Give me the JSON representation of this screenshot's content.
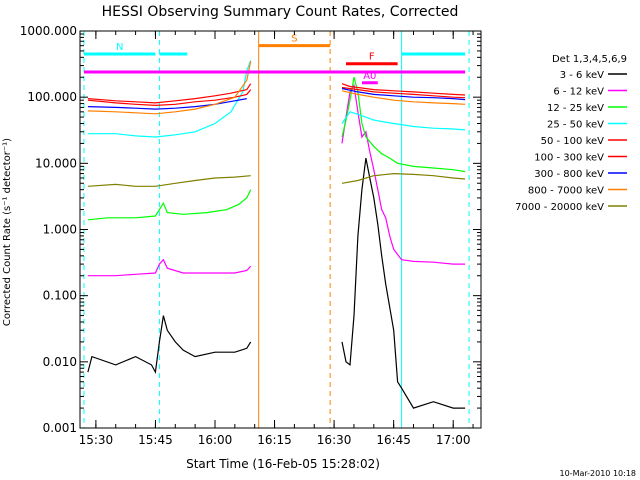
{
  "chart_data": {
    "type": "line",
    "title": "HESSI Observing Summary Count Rates, Corrected",
    "xlabel": "Start Time (16-Feb-05 15:28:02)",
    "ylabel": "Corrected Count Rate (s⁻¹ detector⁻¹)",
    "yscale": "log",
    "xlim": [
      "15:26",
      "17:07"
    ],
    "ylim": [
      0.001,
      1000
    ],
    "x_ticks": [
      "15:30",
      "15:45",
      "16:00",
      "16:15",
      "16:30",
      "16:45",
      "17:00"
    ],
    "y_ticks": [
      "0.001",
      "0.010",
      "0.100",
      "1.000",
      "10.000",
      "100.000",
      "1000.000"
    ],
    "footer": "10-Mar-2010 10:18",
    "legend_title": "Det 1,3,4,5,6,9",
    "legend_position": "right, outside plot",
    "series": [
      {
        "name": "3 - 6 keV",
        "color": "#000000",
        "points": [
          [
            "15:28",
            0.007
          ],
          [
            "15:29",
            0.012
          ],
          [
            "15:35",
            0.009
          ],
          [
            "15:40",
            0.012
          ],
          [
            "15:44",
            0.009
          ],
          [
            "15:45",
            0.007
          ],
          [
            "15:46",
            0.02
          ],
          [
            "15:47",
            0.05
          ],
          [
            "15:48",
            0.03
          ],
          [
            "15:50",
            0.02
          ],
          [
            "15:52",
            0.015
          ],
          [
            "15:55",
            0.012
          ],
          [
            "16:00",
            0.014
          ],
          [
            "16:05",
            0.014
          ],
          [
            "16:08",
            0.016
          ],
          [
            "16:09",
            0.02
          ]
        ]
      },
      {
        "name": "3 - 6 keV",
        "color": "#000000",
        "points": [
          [
            "16:32",
            0.02
          ],
          [
            "16:33",
            0.01
          ],
          [
            "16:34",
            0.009
          ],
          [
            "16:35",
            0.05
          ],
          [
            "16:36",
            0.8
          ],
          [
            "16:37",
            4
          ],
          [
            "16:38",
            12
          ],
          [
            "16:39",
            6
          ],
          [
            "16:40",
            3
          ],
          [
            "16:41",
            1.2
          ],
          [
            "16:42",
            0.4
          ],
          [
            "16:43",
            0.15
          ],
          [
            "16:45",
            0.03
          ],
          [
            "16:46",
            0.005
          ],
          [
            "16:47",
            0.004
          ],
          [
            "16:50",
            0.002
          ],
          [
            "16:55",
            0.0025
          ],
          [
            "17:00",
            0.002
          ],
          [
            "17:03",
            0.002
          ]
        ]
      },
      {
        "name": "6 - 12 keV",
        "color": "#ff00ff",
        "points": [
          [
            "15:28",
            0.2
          ],
          [
            "15:35",
            0.2
          ],
          [
            "15:40",
            0.21
          ],
          [
            "15:45",
            0.22
          ],
          [
            "15:46",
            0.3
          ],
          [
            "15:47",
            0.35
          ],
          [
            "15:48",
            0.26
          ],
          [
            "15:52",
            0.22
          ],
          [
            "15:58",
            0.22
          ],
          [
            "16:05",
            0.22
          ],
          [
            "16:08",
            0.24
          ],
          [
            "16:09",
            0.28
          ]
        ]
      },
      {
        "name": "6 - 12 keV",
        "color": "#ff00ff",
        "points": [
          [
            "16:32",
            20
          ],
          [
            "16:33",
            50
          ],
          [
            "16:34",
            120
          ],
          [
            "16:35",
            150
          ],
          [
            "16:36",
            60
          ],
          [
            "16:37",
            25
          ],
          [
            "16:38",
            30
          ],
          [
            "16:39",
            15
          ],
          [
            "16:40",
            8
          ],
          [
            "16:41",
            4
          ],
          [
            "16:42",
            2
          ],
          [
            "16:43",
            1.5
          ],
          [
            "16:44",
            0.8
          ],
          [
            "16:45",
            0.5
          ],
          [
            "16:47",
            0.35
          ],
          [
            "16:50",
            0.33
          ],
          [
            "16:55",
            0.32
          ],
          [
            "17:00",
            0.3
          ],
          [
            "17:03",
            0.3
          ]
        ]
      },
      {
        "name": "12 - 25 keV",
        "color": "#00ff00",
        "points": [
          [
            "15:28",
            1.4
          ],
          [
            "15:33",
            1.5
          ],
          [
            "15:40",
            1.5
          ],
          [
            "15:45",
            1.6
          ],
          [
            "15:47",
            2.5
          ],
          [
            "15:48",
            1.8
          ],
          [
            "15:52",
            1.7
          ],
          [
            "15:58",
            1.8
          ],
          [
            "16:03",
            2.0
          ],
          [
            "16:06",
            2.4
          ],
          [
            "16:08",
            3.0
          ],
          [
            "16:09",
            4.0
          ]
        ]
      },
      {
        "name": "12 - 25 keV",
        "color": "#00ff00",
        "points": [
          [
            "16:32",
            25
          ],
          [
            "16:33",
            45
          ],
          [
            "16:34",
            90
          ],
          [
            "16:35",
            200
          ],
          [
            "16:36",
            120
          ],
          [
            "16:37",
            40
          ],
          [
            "16:38",
            25
          ],
          [
            "16:40",
            18
          ],
          [
            "16:42",
            14
          ],
          [
            "16:44",
            12
          ],
          [
            "16:46",
            10
          ],
          [
            "16:50",
            9
          ],
          [
            "16:55",
            8.5
          ],
          [
            "17:00",
            8
          ],
          [
            "17:03",
            7.5
          ]
        ]
      },
      {
        "name": "25 - 50 keV",
        "color": "#00ffff",
        "points": [
          [
            "15:28",
            28
          ],
          [
            "15:35",
            28
          ],
          [
            "15:40",
            26
          ],
          [
            "15:45",
            25
          ],
          [
            "15:50",
            27
          ],
          [
            "15:55",
            30
          ],
          [
            "16:00",
            40
          ],
          [
            "16:04",
            60
          ],
          [
            "16:07",
            120
          ],
          [
            "16:08",
            250
          ],
          [
            "16:09",
            360
          ]
        ]
      },
      {
        "name": "25 - 50 keV",
        "color": "#00ffff",
        "points": [
          [
            "16:32",
            40
          ],
          [
            "16:34",
            60
          ],
          [
            "16:36",
            55
          ],
          [
            "16:40",
            45
          ],
          [
            "16:45",
            40
          ],
          [
            "16:50",
            36
          ],
          [
            "16:55",
            34
          ],
          [
            "17:00",
            33
          ],
          [
            "17:03",
            32
          ]
        ]
      },
      {
        "name": "50 - 100 keV",
        "color": "#ff0000",
        "points": [
          [
            "15:28",
            95
          ],
          [
            "15:35",
            88
          ],
          [
            "15:40",
            85
          ],
          [
            "15:45",
            82
          ],
          [
            "15:50",
            88
          ],
          [
            "15:55",
            95
          ],
          [
            "16:00",
            105
          ],
          [
            "16:04",
            115
          ],
          [
            "16:08",
            130
          ],
          [
            "16:09",
            160
          ]
        ]
      },
      {
        "name": "50 - 100 keV",
        "color": "#ff0000",
        "points": [
          [
            "16:32",
            160
          ],
          [
            "16:34",
            145
          ],
          [
            "16:36",
            140
          ],
          [
            "16:40",
            130
          ],
          [
            "16:45",
            125
          ],
          [
            "16:50",
            120
          ],
          [
            "16:55",
            115
          ],
          [
            "17:00",
            110
          ],
          [
            "17:03",
            108
          ]
        ]
      },
      {
        "name": "100 - 300 keV",
        "color": "#ff0000",
        "points": [
          [
            "15:28",
            90
          ],
          [
            "15:35",
            82
          ],
          [
            "15:40",
            78
          ],
          [
            "15:45",
            75
          ],
          [
            "15:50",
            78
          ],
          [
            "15:55",
            85
          ],
          [
            "16:00",
            90
          ],
          [
            "16:05",
            100
          ],
          [
            "16:08",
            110
          ],
          [
            "16:09",
            130
          ]
        ]
      },
      {
        "name": "100 - 300 keV",
        "color": "#ff0000",
        "points": [
          [
            "16:32",
            140
          ],
          [
            "16:36",
            130
          ],
          [
            "16:40",
            120
          ],
          [
            "16:45",
            115
          ],
          [
            "16:50",
            110
          ],
          [
            "16:55",
            105
          ],
          [
            "17:00",
            100
          ],
          [
            "17:03",
            98
          ]
        ]
      },
      {
        "name": "300 - 800 keV",
        "color": "#0000ff",
        "points": [
          [
            "15:28",
            72
          ],
          [
            "15:35",
            70
          ],
          [
            "15:40",
            68
          ],
          [
            "15:45",
            66
          ],
          [
            "15:50",
            68
          ],
          [
            "15:55",
            72
          ],
          [
            "16:00",
            78
          ],
          [
            "16:05",
            88
          ],
          [
            "16:08",
            95
          ]
        ]
      },
      {
        "name": "300 - 800 keV",
        "color": "#0000ff",
        "points": [
          [
            "16:32",
            135
          ],
          [
            "16:36",
            120
          ],
          [
            "16:40",
            110
          ],
          [
            "16:45",
            105
          ],
          [
            "16:50",
            100
          ],
          [
            "16:55",
            98
          ],
          [
            "17:00",
            95
          ],
          [
            "17:03",
            92
          ]
        ]
      },
      {
        "name": "800 - 7000 keV",
        "color": "#ff8000",
        "points": [
          [
            "15:28",
            62
          ],
          [
            "15:35",
            60
          ],
          [
            "15:40",
            58
          ],
          [
            "15:45",
            56
          ],
          [
            "15:50",
            60
          ],
          [
            "15:55",
            66
          ],
          [
            "16:00",
            78
          ],
          [
            "16:05",
            100
          ],
          [
            "16:08",
            180
          ],
          [
            "16:09",
            350
          ]
        ]
      },
      {
        "name": "800 - 7000 keV",
        "color": "#ff8000",
        "points": [
          [
            "16:32",
            125
          ],
          [
            "16:36",
            110
          ],
          [
            "16:40",
            100
          ],
          [
            "16:45",
            90
          ],
          [
            "16:50",
            85
          ],
          [
            "16:55",
            82
          ],
          [
            "17:00",
            80
          ],
          [
            "17:03",
            78
          ]
        ]
      },
      {
        "name": "7000 - 20000 keV",
        "color": "#808000",
        "points": [
          [
            "15:28",
            4.5
          ],
          [
            "15:35",
            4.8
          ],
          [
            "15:40",
            4.5
          ],
          [
            "15:45",
            4.5
          ],
          [
            "15:50",
            5.0
          ],
          [
            "15:55",
            5.5
          ],
          [
            "16:00",
            6.0
          ],
          [
            "16:05",
            6.2
          ],
          [
            "16:09",
            6.5
          ]
        ]
      },
      {
        "name": "7000 - 20000 keV",
        "color": "#808000",
        "points": [
          [
            "16:32",
            5.0
          ],
          [
            "16:36",
            5.5
          ],
          [
            "16:40",
            6.5
          ],
          [
            "16:45",
            7.0
          ],
          [
            "16:50",
            6.8
          ],
          [
            "16:55",
            6.5
          ],
          [
            "17:00",
            6.0
          ],
          [
            "17:03",
            5.8
          ]
        ]
      }
    ],
    "annotations": [
      {
        "type": "bar",
        "label": "N",
        "color": "#00ffff",
        "y": 450,
        "x_ranges": [
          [
            "15:27",
            "15:45"
          ],
          [
            "15:46",
            "15:53"
          ],
          [
            "16:47",
            "17:03"
          ]
        ]
      },
      {
        "type": "bar",
        "label": "",
        "color": "#ff00ff",
        "y": 240,
        "x_ranges": [
          [
            "15:27",
            "17:03"
          ]
        ]
      },
      {
        "type": "bar",
        "label": "S",
        "color": "#ff8000",
        "y": 600,
        "x_ranges": [
          [
            "16:11",
            "16:29"
          ]
        ]
      },
      {
        "type": "bar",
        "label": "F",
        "color": "#ff0000",
        "y": 320,
        "x_ranges": [
          [
            "16:33",
            "16:46"
          ]
        ]
      },
      {
        "type": "bar",
        "label": "A0",
        "color": "#ff00ff",
        "y": 165,
        "x_ranges": [
          [
            "16:37",
            "16:41"
          ]
        ]
      }
    ],
    "vlines": [
      {
        "x": "15:27",
        "color": "#00ffff",
        "style": "dashed"
      },
      {
        "x": "15:46",
        "color": "#00ffff",
        "style": "dashed"
      },
      {
        "x": "16:11",
        "color": "#ff8000",
        "style": "solid"
      },
      {
        "x": "16:29",
        "color": "#ff8000",
        "style": "dashed"
      },
      {
        "x": "16:47",
        "color": "#00ffff",
        "style": "solid"
      },
      {
        "x": "17:04",
        "color": "#00ffff",
        "style": "dashed"
      }
    ]
  }
}
